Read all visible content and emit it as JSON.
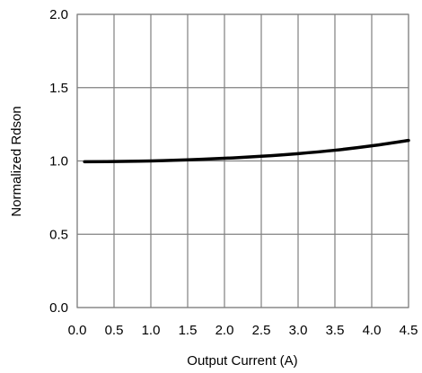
{
  "chart_data": {
    "type": "line",
    "title": "",
    "xlabel": "Output Current (A)",
    "ylabel": "Normalized Rdson",
    "xlim": [
      0,
      4.5
    ],
    "ylim": [
      0,
      2.0
    ],
    "xticks": [
      0.0,
      0.5,
      1.0,
      1.5,
      2.0,
      2.5,
      3.0,
      3.5,
      4.0,
      4.5
    ],
    "xtick_labels": [
      "0.0",
      "0.5",
      "1.0",
      "1.5",
      "2.0",
      "2.5",
      "3.0",
      "3.5",
      "4.0",
      "4.5"
    ],
    "yticks": [
      0.0,
      0.5,
      1.0,
      1.5,
      2.0
    ],
    "ytick_labels": [
      "0.0",
      "0.5",
      "1.0",
      "1.5",
      "2.0"
    ],
    "grid": true,
    "legend": "none",
    "colors": {
      "line": "#000000",
      "grid": "#808080",
      "frame": "#808080"
    },
    "series": [
      {
        "x": [
          0.1,
          0.5,
          1.0,
          1.5,
          2.0,
          2.5,
          3.0,
          3.5,
          4.0,
          4.5
        ],
        "values": [
          0.995,
          0.996,
          1.0,
          1.008,
          1.018,
          1.032,
          1.05,
          1.073,
          1.103,
          1.14
        ]
      }
    ]
  }
}
